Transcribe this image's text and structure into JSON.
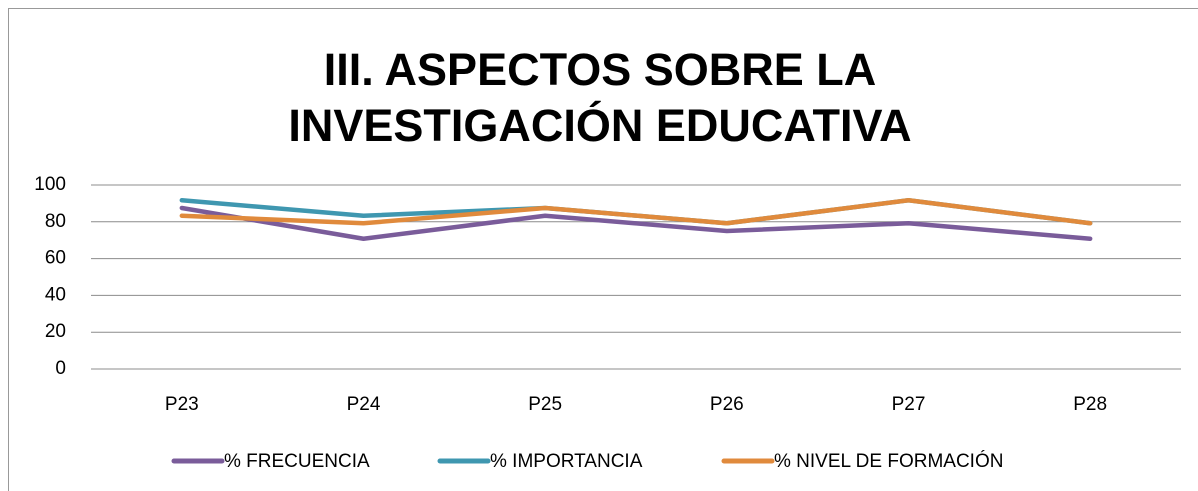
{
  "chart_data": {
    "type": "line",
    "title": "III. ASPECTOS SOBRE LA  INVESTIGACIÓN EDUCATIVA",
    "categories": [
      "P23",
      "P24",
      "P25",
      "P26",
      "P27",
      "P28"
    ],
    "series": [
      {
        "name": "% FRECUENCIA",
        "color": "#7a5c9a",
        "values": [
          87.5,
          70.8,
          83.3,
          75,
          79.2,
          70.8
        ]
      },
      {
        "name": "% IMPORTANCIA",
        "color": "#3f97b0",
        "values": [
          91.7,
          83.3,
          87.5,
          79.2,
          91.7,
          79.2
        ]
      },
      {
        "name": "% NIVEL DE FORMACIÓN",
        "color": "#e08a3c",
        "values": [
          83.3,
          79.2,
          87.5,
          79.2,
          91.7,
          79.2
        ]
      }
    ],
    "ylim": [
      0,
      100
    ],
    "yticks": [
      0,
      20,
      40,
      60,
      80,
      100
    ],
    "grid": true,
    "legend": "bottom"
  }
}
